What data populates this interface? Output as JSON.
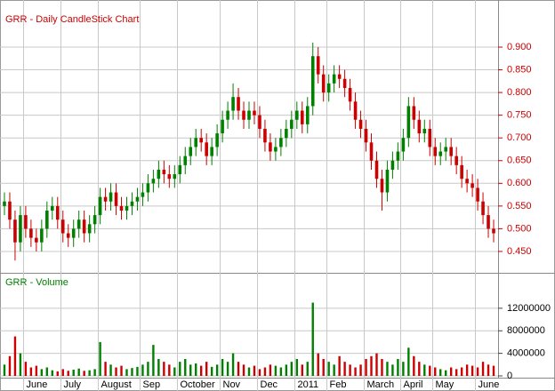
{
  "chart_data": [
    {
      "type": "candlestick",
      "title": "GRR - Daily CandleStick Chart",
      "categories": [
        null,
        null,
        null,
        null,
        "June",
        null,
        null,
        null,
        null,
        null,
        null,
        "July",
        null,
        null,
        null,
        null,
        null,
        null,
        "August",
        null,
        null,
        null,
        null,
        null,
        null,
        null,
        "Sep",
        null,
        null,
        null,
        null,
        null,
        null,
        "October",
        null,
        null,
        null,
        null,
        null,
        null,
        null,
        "Nov",
        null,
        null,
        null,
        null,
        null,
        null,
        "Dec",
        null,
        null,
        null,
        null,
        null,
        null,
        "2011",
        null,
        null,
        null,
        null,
        null,
        "Feb",
        null,
        null,
        null,
        null,
        null,
        null,
        "March",
        null,
        null,
        null,
        null,
        null,
        null,
        "April",
        null,
        null,
        null,
        null,
        null,
        "May",
        null,
        null,
        null,
        null,
        null,
        null,
        null,
        "June",
        null,
        null,
        null
      ],
      "open": [
        0.55,
        0.56,
        0.52,
        0.47,
        0.53,
        0.5,
        0.48,
        0.47,
        0.5,
        0.54,
        0.55,
        0.52,
        0.49,
        0.48,
        0.5,
        0.52,
        0.49,
        0.51,
        0.53,
        0.57,
        0.56,
        0.58,
        0.55,
        0.54,
        0.55,
        0.56,
        0.57,
        0.58,
        0.6,
        0.61,
        0.63,
        0.62,
        0.61,
        0.62,
        0.64,
        0.66,
        0.68,
        0.7,
        0.69,
        0.66,
        0.68,
        0.71,
        0.74,
        0.76,
        0.79,
        0.76,
        0.74,
        0.76,
        0.75,
        0.72,
        0.69,
        0.67,
        0.68,
        0.7,
        0.72,
        0.74,
        0.76,
        0.73,
        0.77,
        0.88,
        0.84,
        0.8,
        0.82,
        0.84,
        0.83,
        0.81,
        0.78,
        0.74,
        0.72,
        0.69,
        0.65,
        0.61,
        0.58,
        0.63,
        0.65,
        0.67,
        0.7,
        0.77,
        0.74,
        0.71,
        0.72,
        0.68,
        0.66,
        0.67,
        0.68,
        0.66,
        0.64,
        0.61,
        0.6,
        0.59,
        0.56,
        0.53,
        0.5
      ],
      "high": [
        0.58,
        0.58,
        0.54,
        0.55,
        0.55,
        0.52,
        0.5,
        0.52,
        0.56,
        0.57,
        0.57,
        0.54,
        0.51,
        0.52,
        0.54,
        0.54,
        0.53,
        0.55,
        0.59,
        0.59,
        0.6,
        0.6,
        0.57,
        0.57,
        0.58,
        0.59,
        0.6,
        0.62,
        0.63,
        0.65,
        0.65,
        0.64,
        0.64,
        0.66,
        0.68,
        0.7,
        0.72,
        0.72,
        0.71,
        0.7,
        0.73,
        0.76,
        0.78,
        0.82,
        0.81,
        0.78,
        0.78,
        0.78,
        0.77,
        0.74,
        0.71,
        0.7,
        0.72,
        0.74,
        0.76,
        0.78,
        0.78,
        0.79,
        0.91,
        0.9,
        0.86,
        0.84,
        0.86,
        0.86,
        0.85,
        0.83,
        0.8,
        0.76,
        0.74,
        0.71,
        0.67,
        0.63,
        0.65,
        0.67,
        0.69,
        0.72,
        0.79,
        0.79,
        0.76,
        0.74,
        0.74,
        0.7,
        0.69,
        0.7,
        0.7,
        0.68,
        0.66,
        0.63,
        0.62,
        0.61,
        0.58,
        0.55,
        0.52
      ],
      "low": [
        0.53,
        0.5,
        0.43,
        0.45,
        0.48,
        0.46,
        0.45,
        0.45,
        0.48,
        0.52,
        0.5,
        0.47,
        0.46,
        0.46,
        0.48,
        0.47,
        0.47,
        0.49,
        0.51,
        0.54,
        0.54,
        0.53,
        0.52,
        0.52,
        0.53,
        0.54,
        0.55,
        0.56,
        0.58,
        0.59,
        0.6,
        0.59,
        0.59,
        0.6,
        0.62,
        0.64,
        0.66,
        0.67,
        0.64,
        0.64,
        0.66,
        0.69,
        0.72,
        0.74,
        0.74,
        0.72,
        0.72,
        0.73,
        0.7,
        0.67,
        0.65,
        0.65,
        0.66,
        0.68,
        0.7,
        0.72,
        0.71,
        0.71,
        0.75,
        0.82,
        0.78,
        0.78,
        0.8,
        0.81,
        0.79,
        0.76,
        0.72,
        0.7,
        0.67,
        0.63,
        0.59,
        0.54,
        0.56,
        0.61,
        0.63,
        0.65,
        0.68,
        0.72,
        0.69,
        0.69,
        0.66,
        0.64,
        0.64,
        0.65,
        0.64,
        0.62,
        0.59,
        0.58,
        0.57,
        0.54,
        0.51,
        0.48,
        0.47
      ],
      "close": [
        0.56,
        0.52,
        0.47,
        0.53,
        0.5,
        0.48,
        0.47,
        0.5,
        0.54,
        0.55,
        0.52,
        0.49,
        0.48,
        0.5,
        0.52,
        0.49,
        0.51,
        0.53,
        0.57,
        0.56,
        0.58,
        0.55,
        0.54,
        0.55,
        0.56,
        0.57,
        0.58,
        0.6,
        0.61,
        0.63,
        0.62,
        0.61,
        0.62,
        0.64,
        0.66,
        0.68,
        0.7,
        0.69,
        0.66,
        0.68,
        0.71,
        0.74,
        0.76,
        0.79,
        0.76,
        0.74,
        0.76,
        0.75,
        0.72,
        0.69,
        0.67,
        0.68,
        0.7,
        0.72,
        0.74,
        0.76,
        0.73,
        0.77,
        0.88,
        0.84,
        0.8,
        0.82,
        0.84,
        0.83,
        0.81,
        0.78,
        0.74,
        0.72,
        0.69,
        0.65,
        0.61,
        0.58,
        0.63,
        0.65,
        0.67,
        0.7,
        0.77,
        0.74,
        0.71,
        0.72,
        0.68,
        0.66,
        0.67,
        0.68,
        0.66,
        0.64,
        0.61,
        0.6,
        0.59,
        0.56,
        0.53,
        0.5,
        0.49
      ],
      "up_color": "#008000",
      "down_color": "#cc0000",
      "ylim": [
        0.41,
        0.99
      ],
      "yticks": [
        {
          "value": 0.45,
          "label": "0.450"
        },
        {
          "value": 0.5,
          "label": "0.500"
        },
        {
          "value": 0.55,
          "label": "0.550"
        },
        {
          "value": 0.6,
          "label": "0.600"
        },
        {
          "value": 0.65,
          "label": "0.650"
        },
        {
          "value": 0.7,
          "label": "0.700"
        },
        {
          "value": 0.75,
          "label": "0.750"
        },
        {
          "value": 0.8,
          "label": "0.800"
        },
        {
          "value": 0.85,
          "label": "0.850"
        },
        {
          "value": 0.9,
          "label": "0.900"
        }
      ],
      "grid": true
    },
    {
      "type": "bar",
      "title": "GRR - Volume",
      "values": [
        2000000,
        3500000,
        7000000,
        4000000,
        2500000,
        1500000,
        1800000,
        1200000,
        1500000,
        1000000,
        800000,
        1200000,
        900000,
        1100000,
        1300000,
        900000,
        1000000,
        1200000,
        6000000,
        2500000,
        2000000,
        1500000,
        1800000,
        1200000,
        1400000,
        1600000,
        2000000,
        2500000,
        5500000,
        3000000,
        2500000,
        2000000,
        1500000,
        2500000,
        3000000,
        2000000,
        2200000,
        1800000,
        2500000,
        1600000,
        2000000,
        3000000,
        2500000,
        4000000,
        2500000,
        2000000,
        1500000,
        1800000,
        1200000,
        1500000,
        2000000,
        1800000,
        1500000,
        2000000,
        2500000,
        3000000,
        2000000,
        2500000,
        13000000,
        4000000,
        3000000,
        2500000,
        2000000,
        3500000,
        2500000,
        2000000,
        1500000,
        2000000,
        3000000,
        3500000,
        4000000,
        3000000,
        2500000,
        2000000,
        3000000,
        2500000,
        5000000,
        3500000,
        2500000,
        2000000,
        1800000,
        1500000,
        1200000,
        1000000,
        1500000,
        1200000,
        1500000,
        2000000,
        1800000,
        1500000,
        2500000,
        2000000,
        1800000
      ],
      "ylim": [
        0,
        17500000
      ],
      "yticks": [
        0,
        4000000,
        8000000,
        12000000
      ],
      "grid": true
    }
  ]
}
